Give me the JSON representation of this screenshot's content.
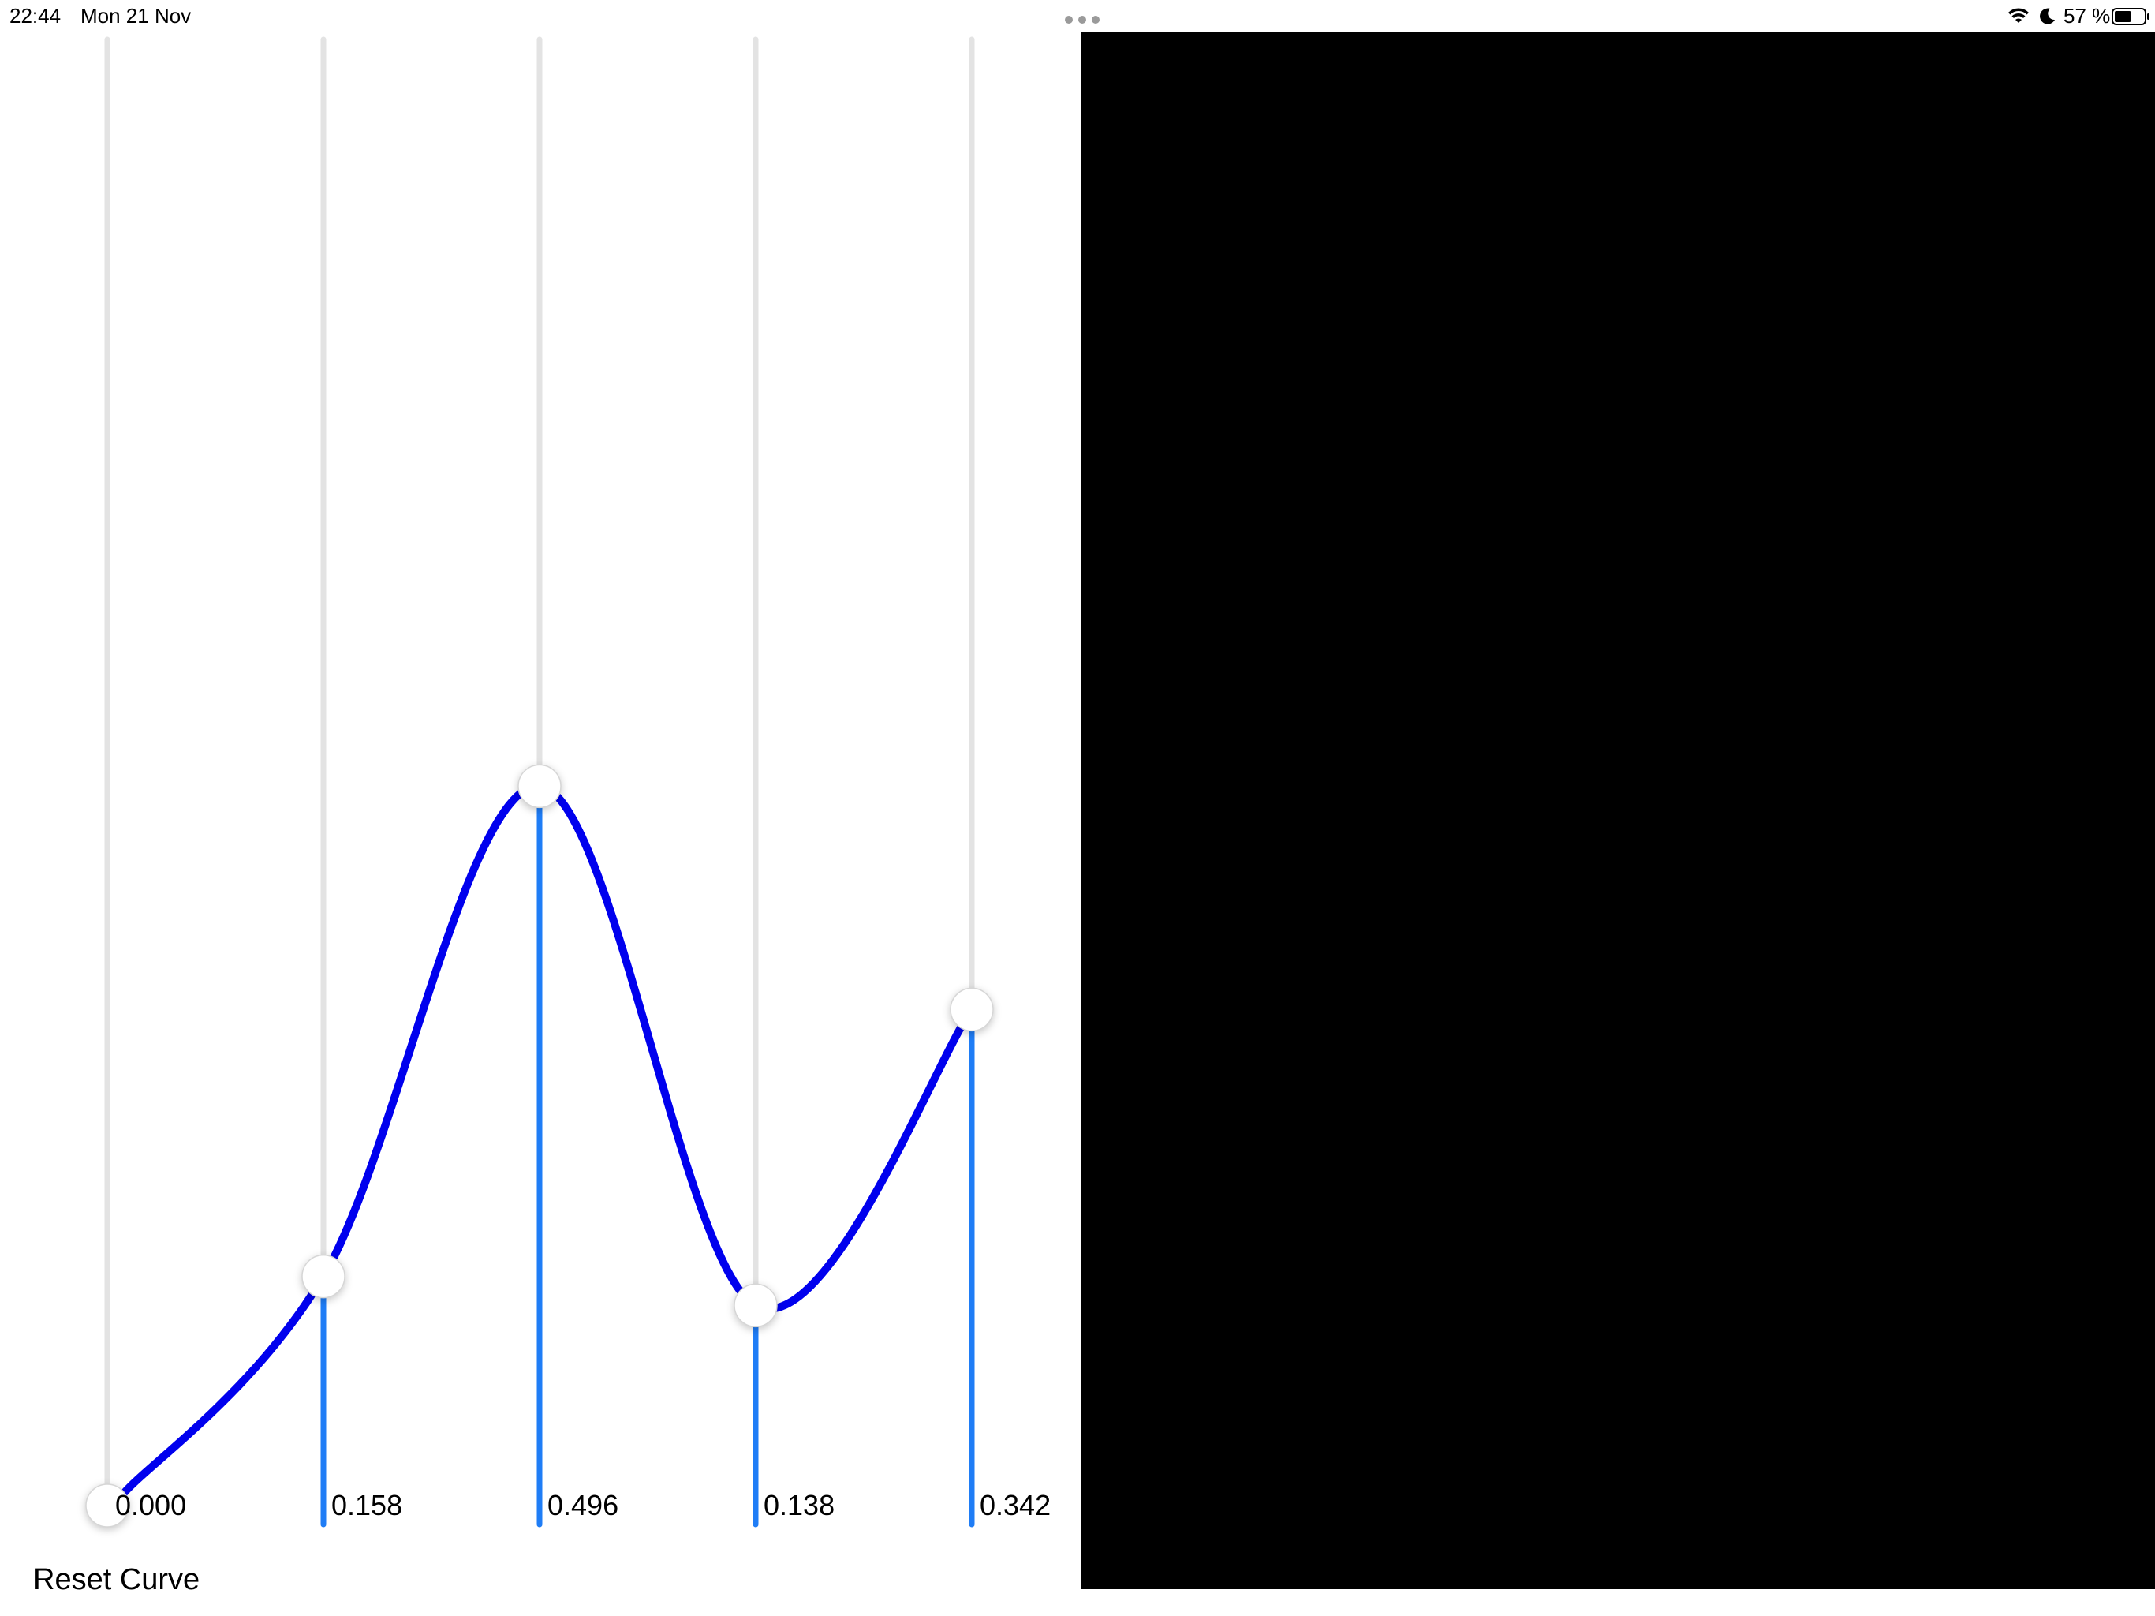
{
  "status_bar": {
    "time": "22:44",
    "date": "Mon 21 Nov",
    "battery_percent": "57 %",
    "battery_level": 0.57,
    "icons": [
      "wifi-icon",
      "moon-icon",
      "battery-icon"
    ]
  },
  "multitasking_indicator": "three-dots-icon",
  "curve_editor": {
    "control_points": [
      {
        "value": 0.0,
        "label": "0.000"
      },
      {
        "value": 0.158,
        "label": "0.158"
      },
      {
        "value": 0.496,
        "label": "0.496"
      },
      {
        "value": 0.138,
        "label": "0.138"
      },
      {
        "value": 0.342,
        "label": "0.342"
      }
    ],
    "reset_label": "Reset Curve",
    "colors": {
      "curve": "#0000ee",
      "slider_fill": "#1f7df6",
      "slider_track": "#e3e3e3",
      "thumb": "#ffffff"
    }
  },
  "side_panel": {
    "color": "#000000"
  }
}
